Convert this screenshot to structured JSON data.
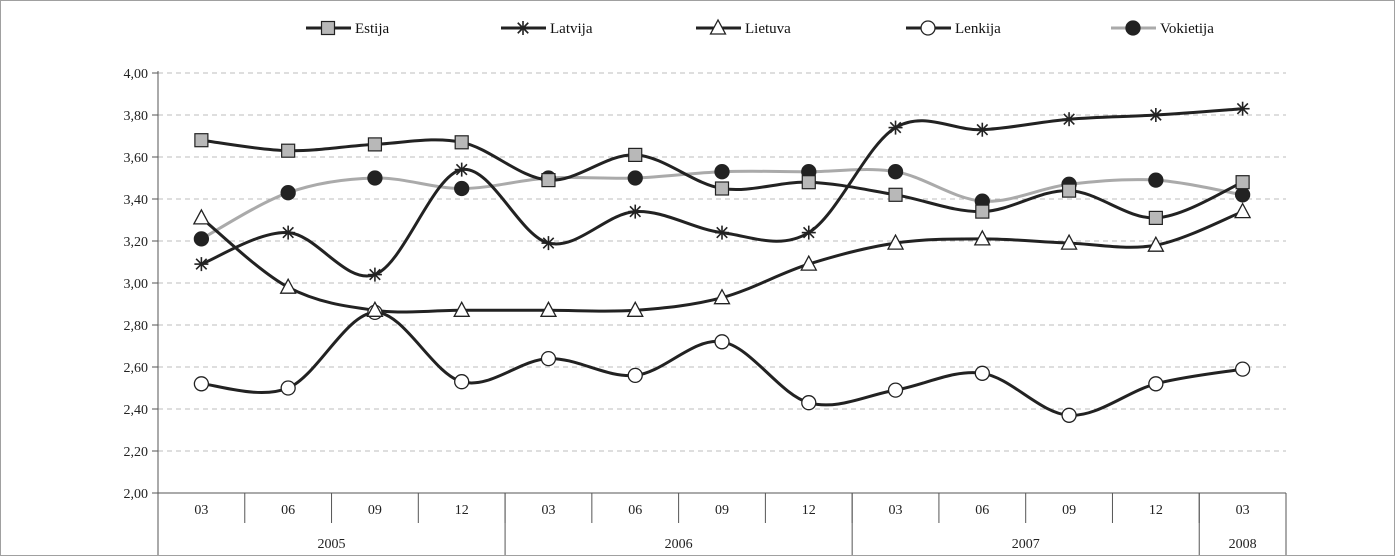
{
  "chart_data": {
    "type": "line",
    "title": "",
    "xlabel": "",
    "ylabel": "",
    "ylim": [
      2.0,
      4.0
    ],
    "y_ticks": [
      "2,00",
      "2,20",
      "2,40",
      "2,60",
      "2,80",
      "3,00",
      "3,20",
      "3,40",
      "3,60",
      "3,80",
      "4,00"
    ],
    "grid": "horizontal dashed",
    "legend_position": "top",
    "categories": [
      "03",
      "06",
      "09",
      "12",
      "03",
      "06",
      "09",
      "12",
      "03",
      "06",
      "09",
      "12",
      "03"
    ],
    "year_groups": [
      {
        "label": "2005",
        "count": 4
      },
      {
        "label": "2006",
        "count": 4
      },
      {
        "label": "2007",
        "count": 4
      },
      {
        "label": "2008",
        "count": 1
      }
    ],
    "series": [
      {
        "name": "Estija",
        "marker": "square",
        "line_color": "#222222",
        "marker_fill": "#b8b8b8",
        "values": [
          3.68,
          3.63,
          3.66,
          3.67,
          3.49,
          3.61,
          3.45,
          3.48,
          3.42,
          3.34,
          3.44,
          3.31,
          3.48
        ]
      },
      {
        "name": "Latvija",
        "marker": "star",
        "line_color": "#222222",
        "marker_fill": "#222222",
        "values": [
          3.09,
          3.24,
          3.04,
          3.54,
          3.19,
          3.34,
          3.24,
          3.24,
          3.74,
          3.73,
          3.78,
          3.8,
          3.83
        ]
      },
      {
        "name": "Lietuva",
        "marker": "triangle",
        "line_color": "#222222",
        "marker_fill": "#ffffff",
        "values": [
          3.31,
          2.98,
          2.87,
          2.87,
          2.87,
          2.87,
          2.93,
          3.09,
          3.19,
          3.21,
          3.19,
          3.18,
          3.34
        ]
      },
      {
        "name": "Lenkija",
        "marker": "circle-open",
        "line_color": "#222222",
        "marker_fill": "#ffffff",
        "values": [
          2.52,
          2.5,
          2.86,
          2.53,
          2.64,
          2.56,
          2.72,
          2.43,
          2.49,
          2.57,
          2.37,
          2.52,
          2.59
        ]
      },
      {
        "name": "Vokietija",
        "marker": "circle-filled",
        "line_color": "#aaaaaa",
        "marker_fill": "#222222",
        "values": [
          3.21,
          3.43,
          3.5,
          3.45,
          3.5,
          3.5,
          3.53,
          3.53,
          3.53,
          3.39,
          3.47,
          3.49,
          3.42
        ]
      }
    ]
  }
}
